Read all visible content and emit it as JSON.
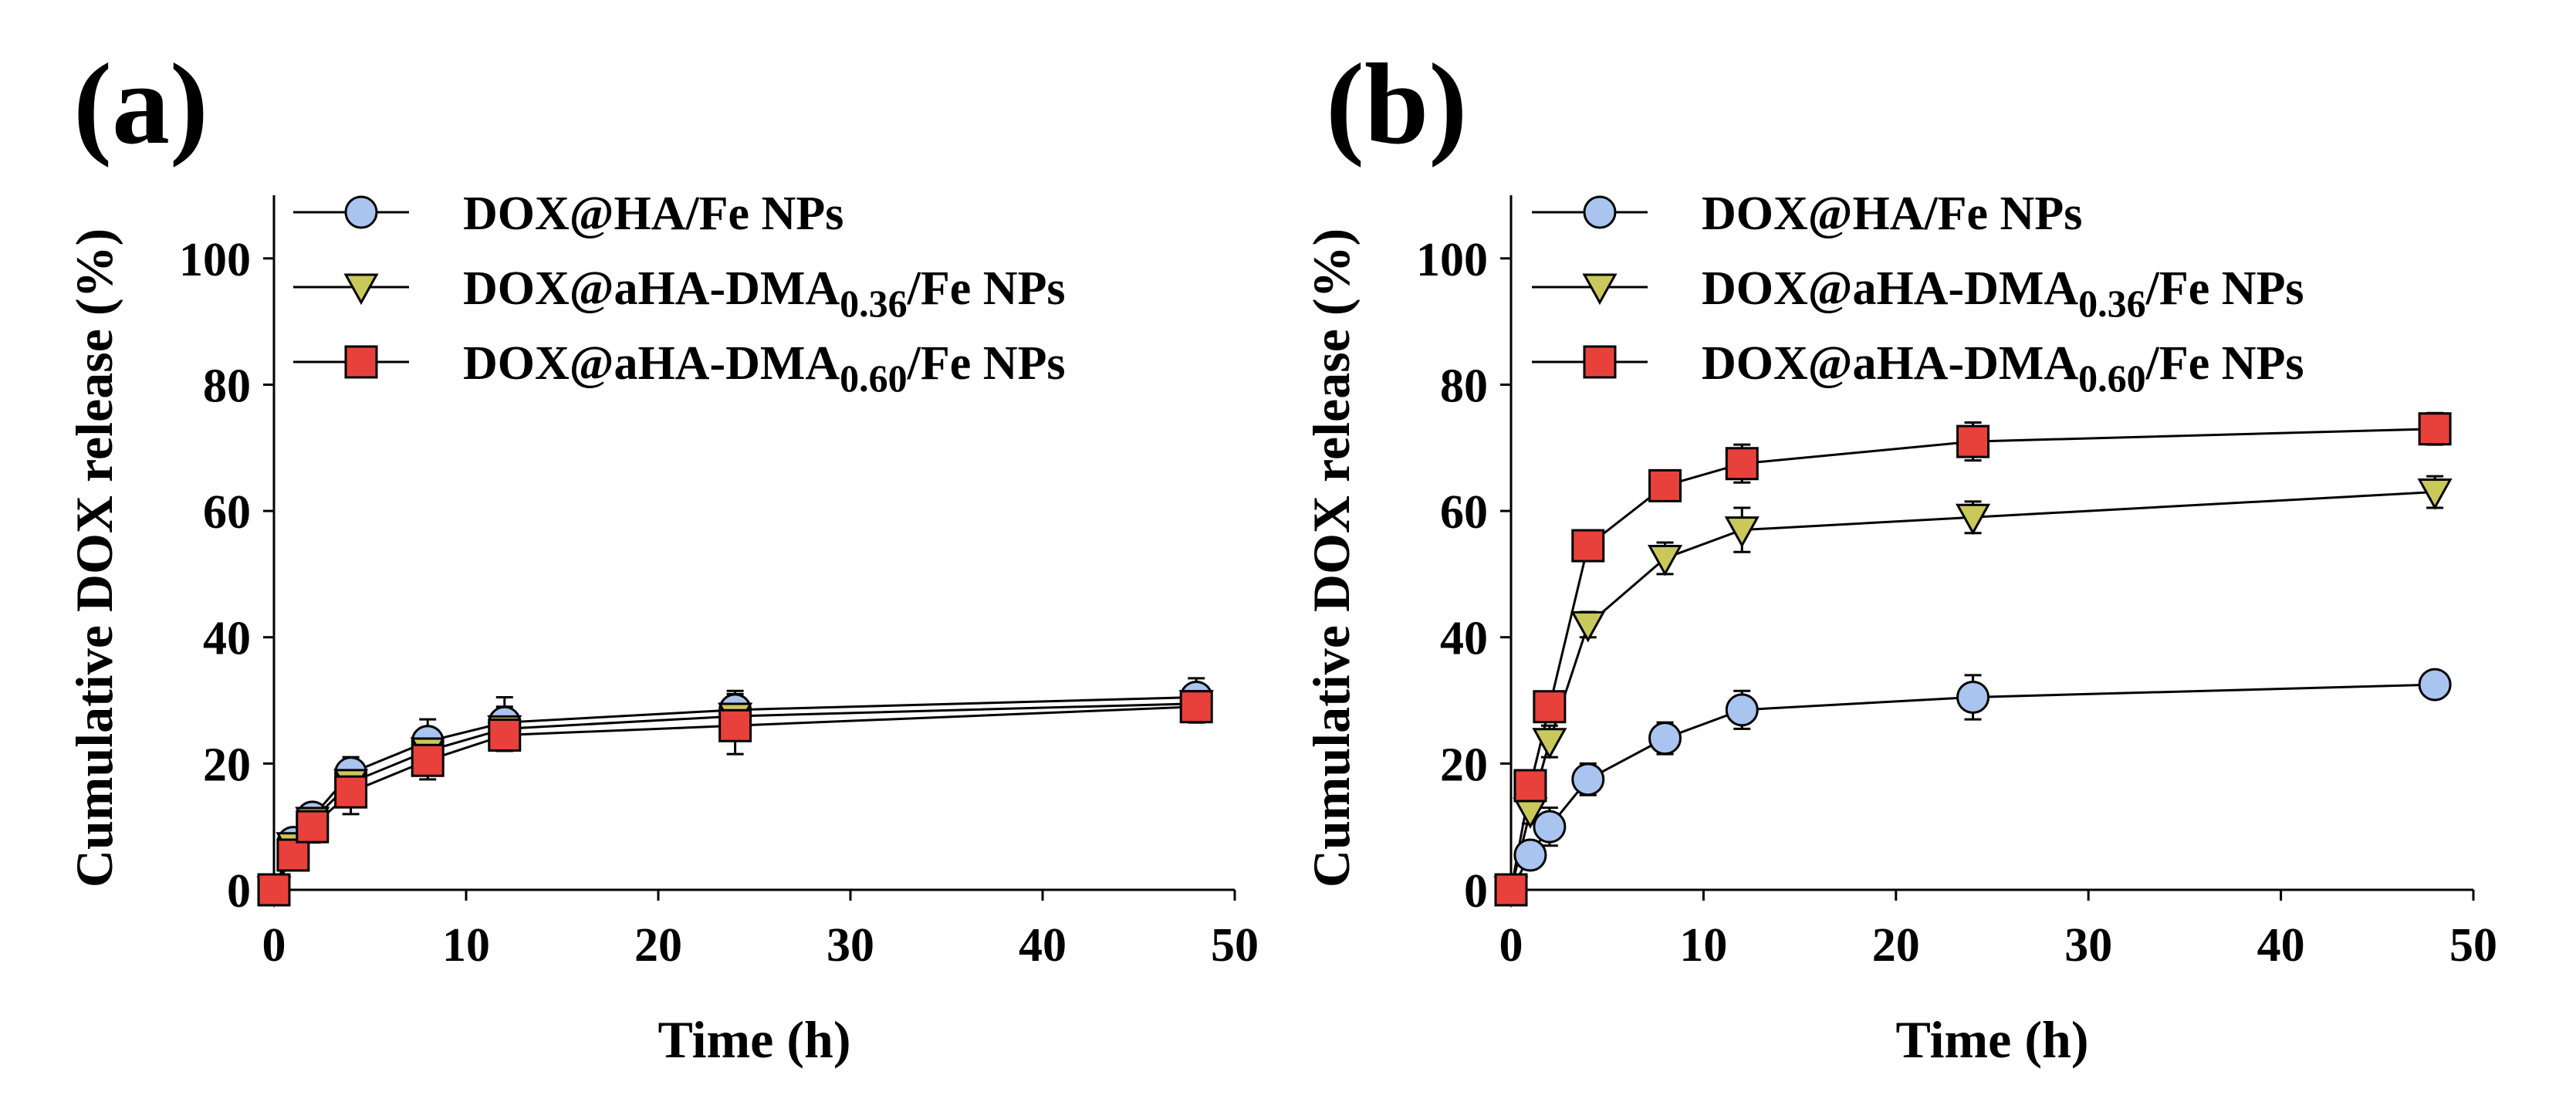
{
  "figure": {
    "colors": {
      "series_1": "#a9c4ef",
      "series_2": "#c9c85a",
      "series_3": "#e8413b",
      "line": "#000000",
      "marker_edge": "#000000"
    },
    "icons": {
      "series_1": "circle-marker",
      "series_2": "down-triangle-marker",
      "series_3": "square-marker"
    }
  },
  "chart_data": [
    {
      "panel_label": "(a)",
      "type": "line",
      "xlabel": "Time (h)",
      "ylabel": "Cumulative DOX release (%)",
      "xlim": [
        0,
        50
      ],
      "ylim": [
        0,
        110
      ],
      "xticks": [
        "0",
        "10",
        "20",
        "30",
        "40",
        "50"
      ],
      "yticks": [
        "0",
        "20",
        "40",
        "60",
        "80",
        "100"
      ],
      "x": [
        0,
        1,
        2,
        4,
        8,
        12,
        24,
        48
      ],
      "series": [
        {
          "name": "DOX@HA/Fe NPs",
          "legend_main": "DOX@HA/Fe NPs",
          "legend_pre": "DOX@HA/Fe NPs",
          "legend_sub": "",
          "legend_post": "",
          "values": [
            0,
            7.5,
            11.5,
            18.5,
            23.5,
            26.5,
            28.5,
            30.5
          ],
          "errors": [
            0.5,
            2.0,
            2.0,
            2.5,
            3.5,
            4.0,
            3.0,
            3.0
          ]
        },
        {
          "name": "DOX@aHA-DMA0.36/Fe NPs",
          "legend_pre": "DOX@aHA-DMA",
          "legend_sub": "0.36",
          "legend_post": "/Fe NPs",
          "values": [
            0,
            7.0,
            11.0,
            17.0,
            22.0,
            25.5,
            27.5,
            29.5
          ],
          "errors": [
            0.5,
            2.0,
            2.0,
            2.5,
            3.0,
            3.5,
            3.5,
            3.0
          ]
        },
        {
          "name": "DOX@aHA-DMA0.60/Fe NPs",
          "legend_pre": "DOX@aHA-DMA",
          "legend_sub": "0.60",
          "legend_post": "/Fe NPs",
          "values": [
            0,
            5.5,
            10.0,
            15.5,
            20.5,
            24.5,
            26.0,
            29.0
          ],
          "errors": [
            0.5,
            2.0,
            2.5,
            3.5,
            3.0,
            2.5,
            4.5,
            2.5
          ]
        }
      ],
      "legend_position": "top-right"
    },
    {
      "panel_label": "(b)",
      "type": "line",
      "xlabel": "Time (h)",
      "ylabel": "Cumulative DOX release (%)",
      "xlim": [
        0,
        50
      ],
      "ylim": [
        0,
        110
      ],
      "xticks": [
        "0",
        "10",
        "20",
        "30",
        "40",
        "50"
      ],
      "yticks": [
        "0",
        "20",
        "40",
        "60",
        "80",
        "100"
      ],
      "x": [
        0,
        1,
        2,
        4,
        8,
        12,
        24,
        48
      ],
      "series": [
        {
          "name": "DOX@HA/Fe NPs",
          "legend_pre": "DOX@HA/Fe NPs",
          "legend_sub": "",
          "legend_post": "",
          "values": [
            0,
            5.5,
            10.0,
            17.5,
            24.0,
            28.5,
            30.5,
            32.5
          ],
          "errors": [
            0.5,
            2.0,
            3.0,
            2.5,
            2.5,
            3.0,
            3.5,
            2.0
          ]
        },
        {
          "name": "DOX@aHA-DMA0.36/Fe NPs",
          "legend_pre": "DOX@aHA-DMA",
          "legend_sub": "0.36",
          "legend_post": "/Fe NPs",
          "values": [
            0,
            12.5,
            23.5,
            42.0,
            52.5,
            57.0,
            59.0,
            63.0
          ],
          "errors": [
            0.5,
            2.0,
            2.5,
            2.0,
            2.5,
            3.5,
            2.5,
            2.5
          ]
        },
        {
          "name": "DOX@aHA-DMA0.60/Fe NPs",
          "legend_pre": "DOX@aHA-DMA",
          "legend_sub": "0.60",
          "legend_post": "/Fe NPs",
          "values": [
            0,
            16.5,
            29.0,
            54.5,
            64.0,
            67.5,
            71.0,
            73.0
          ],
          "errors": [
            0.5,
            2.0,
            2.0,
            2.0,
            2.0,
            3.0,
            3.0,
            2.5
          ]
        }
      ],
      "legend_position": "top-right"
    }
  ]
}
